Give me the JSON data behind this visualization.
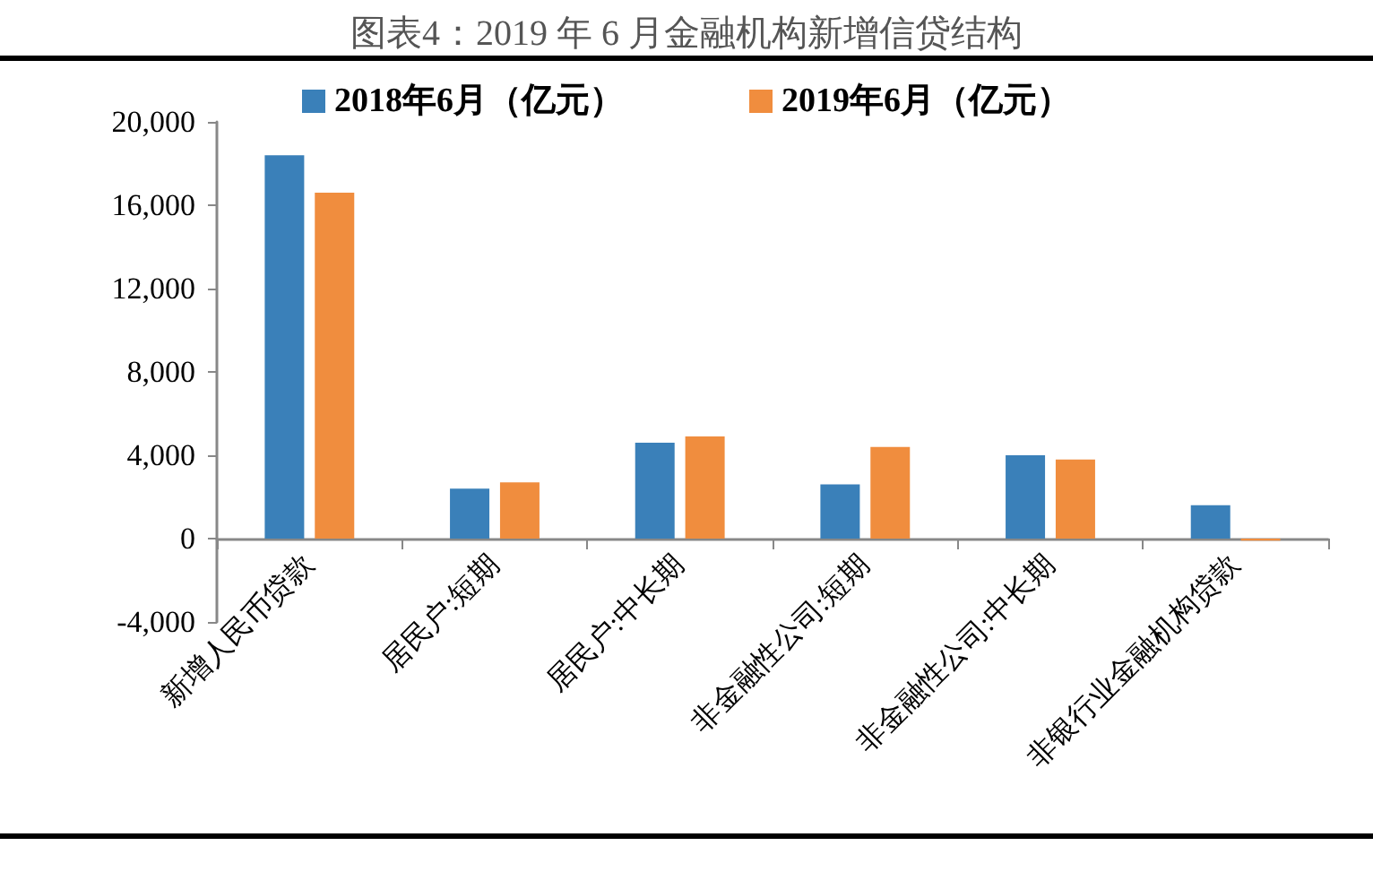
{
  "chart_data": {
    "type": "bar",
    "title": "图表4：2019 年 6 月金融机构新增信贷结构",
    "categories": [
      "新增人民币贷款",
      "居民户:短期",
      "居民户:中长期",
      "非金融性公司:短期",
      "非金融性公司:中长期",
      "非银行业金融机构贷款"
    ],
    "series": [
      {
        "name": "2018年6月（亿元）",
        "color": "#3a80b9",
        "values": [
          18400,
          2400,
          4600,
          2600,
          4000,
          1600
        ]
      },
      {
        "name": "2019年6月（亿元）",
        "color": "#f08d3e",
        "values": [
          16600,
          2700,
          4900,
          4400,
          3800,
          -100
        ]
      }
    ],
    "ylim": [
      -4000,
      20000
    ],
    "yticks": [
      {
        "value": -4000,
        "label": "-4,000"
      },
      0,
      {
        "value": 4000,
        "label": "4,000"
      },
      {
        "value": 8000,
        "label": "8,000"
      },
      {
        "value": 12000,
        "label": "12,000"
      },
      {
        "value": 16000,
        "label": "16,000"
      },
      {
        "value": 20000,
        "label": "20,000"
      }
    ],
    "legend": "top"
  }
}
